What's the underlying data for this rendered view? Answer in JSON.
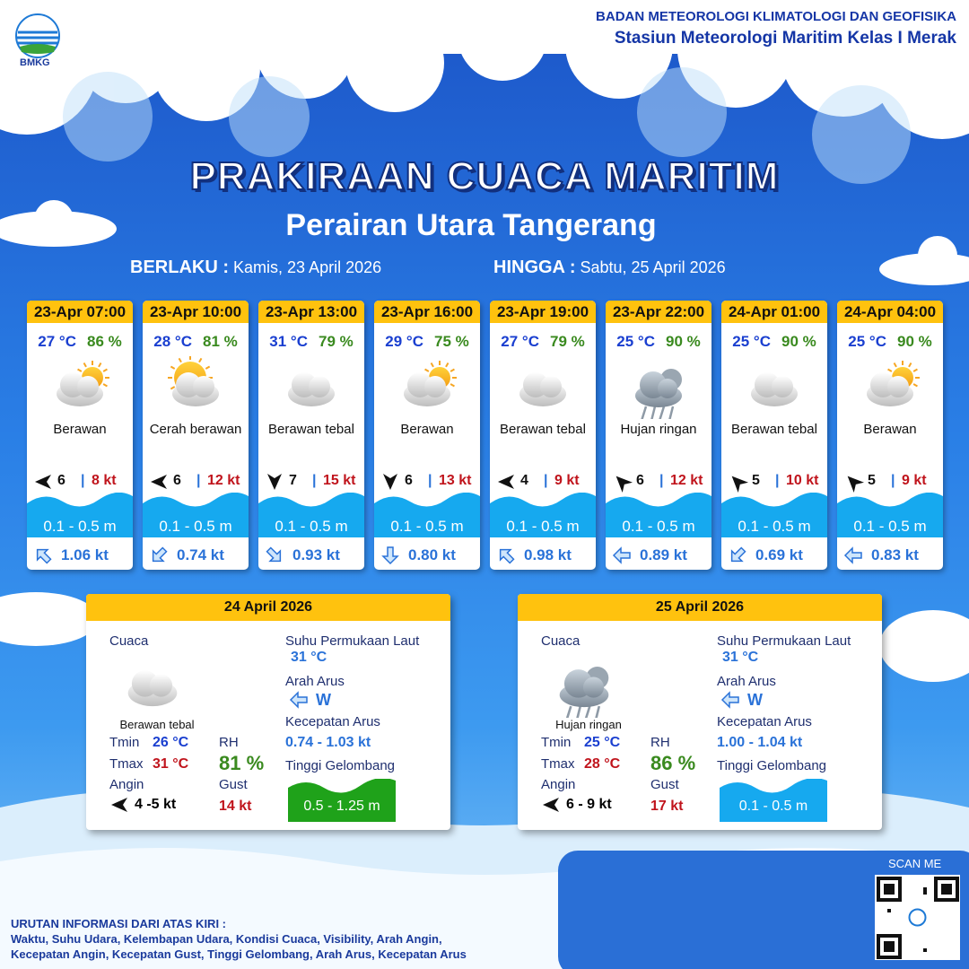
{
  "header": {
    "logo_text": "BMKG",
    "agency": "BADAN METEOROLOGI KLIMATOLOGI DAN GEOFISIKA",
    "station": "Stasiun Meteorologi Maritim Kelas I Merak"
  },
  "title": "PRAKIRAAN CUACA MARITIM",
  "subtitle": "Perairan Utara Tangerang",
  "validity": {
    "from_label": "BERLAKU :",
    "from": "Kamis, 23 April 2026",
    "to_label": "HINGGA :",
    "to": "Sabtu, 25 April 2026"
  },
  "forecasts": [
    {
      "time": "23-Apr 07:00",
      "temp": "27 °C",
      "rh": "86 %",
      "weather": "Berawan",
      "wind": "6",
      "gust": "8 kt",
      "wave": "0.1 - 0.5 m",
      "current": "1.06 kt"
    },
    {
      "time": "23-Apr 10:00",
      "temp": "28 °C",
      "rh": "81 %",
      "weather": "Cerah berawan",
      "wind": "6",
      "gust": "12 kt",
      "wave": "0.1 - 0.5 m",
      "current": "0.74 kt"
    },
    {
      "time": "23-Apr 13:00",
      "temp": "31 °C",
      "rh": "79 %",
      "weather": "Berawan tebal",
      "wind": "7",
      "gust": "15 kt",
      "wave": "0.1 - 0.5 m",
      "current": "0.93 kt"
    },
    {
      "time": "23-Apr 16:00",
      "temp": "29 °C",
      "rh": "75 %",
      "weather": "Berawan",
      "wind": "6",
      "gust": "13 kt",
      "wave": "0.1 - 0.5 m",
      "current": "0.80 kt"
    },
    {
      "time": "23-Apr 19:00",
      "temp": "27 °C",
      "rh": "79 %",
      "weather": "Berawan tebal",
      "wind": "4",
      "gust": "9 kt",
      "wave": "0.1 - 0.5 m",
      "current": "0.98 kt"
    },
    {
      "time": "23-Apr 22:00",
      "temp": "25 °C",
      "rh": "90 %",
      "weather": "Hujan ringan",
      "wind": "6",
      "gust": "12 kt",
      "wave": "0.1 - 0.5 m",
      "current": "0.89 kt"
    },
    {
      "time": "24-Apr 01:00",
      "temp": "25 °C",
      "rh": "90 %",
      "weather": "Berawan tebal",
      "wind": "5",
      "gust": "10 kt",
      "wave": "0.1 - 0.5 m",
      "current": "0.69 kt"
    },
    {
      "time": "24-Apr 04:00",
      "temp": "25 °C",
      "rh": "90 %",
      "weather": "Berawan",
      "wind": "5",
      "gust": "9 kt",
      "wave": "0.1 - 0.5 m",
      "current": "0.83 kt"
    }
  ],
  "daily_labels": {
    "weather": "Cuaca",
    "tmin": "Tmin",
    "tmax": "Tmax",
    "rh": "RH",
    "wind": "Angin",
    "gust": "Gust",
    "sst": "Suhu Permukaan Laut",
    "current_dir": "Arah Arus",
    "current_speed": "Kecepatan Arus",
    "wave": "Tinggi Gelombang"
  },
  "daily": [
    {
      "date": "24 April 2026",
      "weather": "Berawan tebal",
      "tmin": "26 °C",
      "tmax": "31 °C",
      "rh": "81 %",
      "wind": "4 -5 kt",
      "gust": "14 kt",
      "sst": "31 °C",
      "current_dir": "W",
      "current_speed": "0.74 - 1.03 kt",
      "wave": "0.5 - 1.25 m",
      "wave_color": "#1fa21a"
    },
    {
      "date": "25 April 2026",
      "weather": "Hujan ringan",
      "tmin": "25 °C",
      "tmax": "28 °C",
      "rh": "86 %",
      "wind": "6 - 9 kt",
      "gust": "17 kt",
      "sst": "31 °C",
      "current_dir": "W",
      "current_speed": "1.00 - 1.04 kt",
      "wave": "0.1 - 0.5 m",
      "wave_color": "#16a9ef"
    }
  ],
  "footer": {
    "scan": "SCAN ME",
    "notes_title": "URUTAN INFORMASI DARI ATAS KIRI :",
    "notes_line1": "Waktu, Suhu Udara, Kelembapan Udara, Kondisi Cuaca, Visibility, Arah Angin,",
    "notes_line2": "Kecepatan Angin, Kecepatan Gust, Tinggi Gelombang, Arah Arus, Kecepatan Arus"
  }
}
